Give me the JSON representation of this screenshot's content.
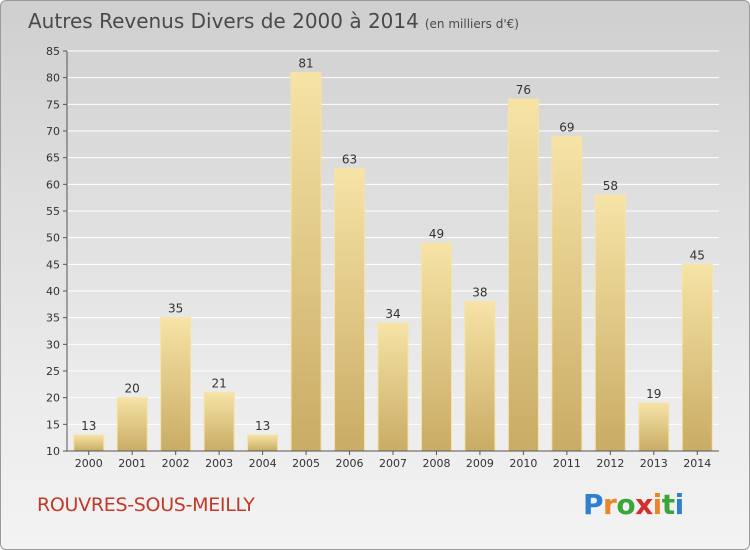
{
  "title": "Autres Revenus Divers de 2000 à 2014",
  "unit_note": "(en milliers d'€)",
  "commune": "ROUVRES-SOUS-MEILLY",
  "logo": {
    "text": "Proxiti",
    "letters": [
      "P",
      "r",
      "o",
      "x",
      "i",
      "t",
      "i"
    ],
    "colors": [
      "#2f7fd0",
      "#e8862a",
      "#3aa53a",
      "#d32f2f",
      "#e8862a",
      "#3aa53a",
      "#2f7fd0"
    ]
  },
  "colors": {
    "bar_light": "#f6e3a6",
    "bar_dark": "#c9ac65",
    "grid": "#ffffff",
    "axis_text": "#333333",
    "title_text": "#4a4a4a",
    "commune_text": "#c0392b"
  },
  "chart_data": {
    "type": "bar",
    "categories": [
      "2000",
      "2001",
      "2002",
      "2003",
      "2004",
      "2005",
      "2006",
      "2007",
      "2008",
      "2009",
      "2010",
      "2011",
      "2012",
      "2013",
      "2014"
    ],
    "values": [
      13,
      20,
      35,
      21,
      13,
      81,
      63,
      34,
      49,
      38,
      76,
      69,
      58,
      19,
      45
    ],
    "ylim": [
      10,
      85
    ],
    "yticks": [
      "10",
      "15",
      "20",
      "25",
      "30",
      "35",
      "40",
      "45",
      "50",
      "55",
      "60",
      "65",
      "70",
      "75",
      "80",
      "85"
    ],
    "grid": true
  }
}
